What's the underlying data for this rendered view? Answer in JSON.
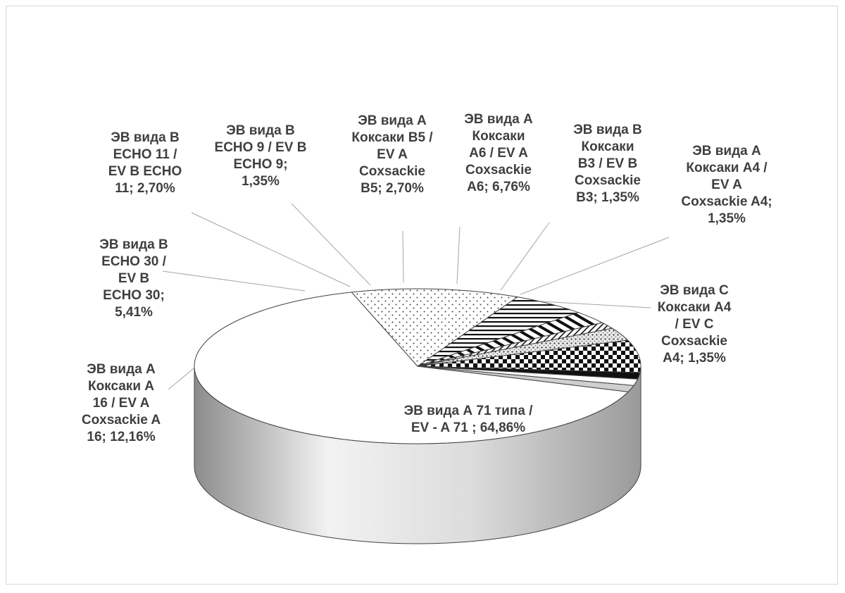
{
  "chart_data": {
    "type": "pie",
    "title": "",
    "slices": [
      {
        "label_lines": [
          "ЭВ вида А 71 типа /",
          "EV - A 71 ; 64,86%"
        ],
        "value": 64.86
      },
      {
        "label_lines": [
          "ЭВ вида А",
          "Коксаки А",
          "16 / EV A",
          "Coxsackie A",
          "16; 12,16%"
        ],
        "value": 12.16
      },
      {
        "label_lines": [
          "ЭВ вида В",
          "ЕСНО 30 /",
          "EV B",
          "ECHO 30;",
          "5,41%"
        ],
        "value": 5.41
      },
      {
        "label_lines": [
          "ЭВ вида В",
          "ЕСНО 11 /",
          "EV B ECHO",
          "11; 2,70%"
        ],
        "value": 2.7
      },
      {
        "label_lines": [
          "ЭВ вида В",
          "ЕСНО 9 / EV B",
          "ECHO 9;",
          "1,35%"
        ],
        "value": 1.35
      },
      {
        "label_lines": [
          "ЭВ вида А",
          "Коксаки В5 /",
          "EV A",
          "Coxsackie",
          "B5; 2,70%"
        ],
        "value": 2.7
      },
      {
        "label_lines": [
          "ЭВ вида А",
          "Коксаки",
          "А6 / EV A",
          "Coxsackie",
          "A6; 6,76%"
        ],
        "value": 6.76
      },
      {
        "label_lines": [
          "ЭВ вида В",
          "Коксаки",
          "В3 / EV B",
          "Coxsackie",
          "B3; 1,35%"
        ],
        "value": 1.35
      },
      {
        "label_lines": [
          "ЭВ вида А",
          "Коксаки А4 /",
          "EV  A",
          "Coxsackie A4;",
          "1,35%"
        ],
        "value": 1.35
      },
      {
        "label_lines": [
          "ЭВ вида С",
          "Коксаки А4",
          "/ EV C",
          "Coxsackie",
          "A4; 1,35%"
        ],
        "value": 1.35
      }
    ]
  }
}
